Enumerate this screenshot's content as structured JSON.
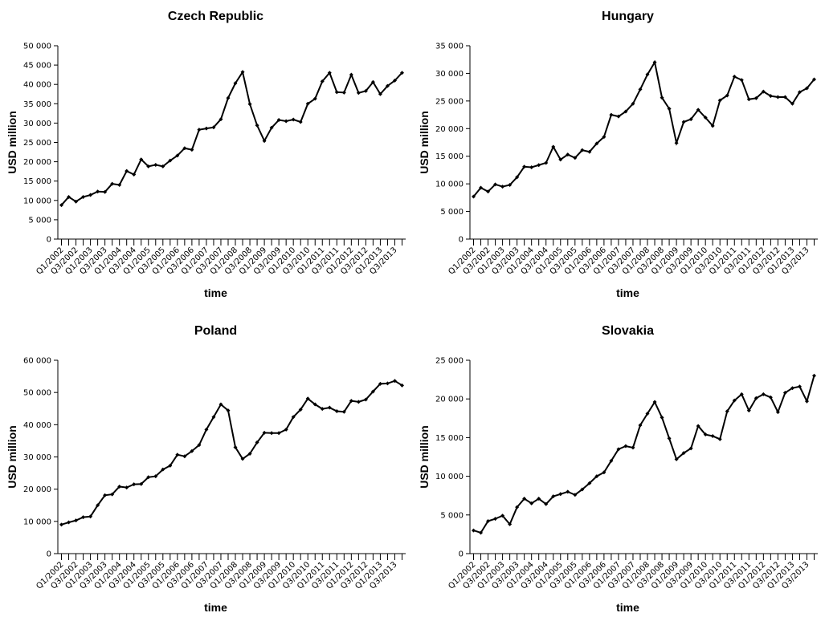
{
  "chart_data": [
    {
      "type": "line",
      "title": "Czech Republic",
      "xlabel": "time",
      "ylabel": "USD million",
      "color": "#000000",
      "categories": [
        "Q1/2002",
        null,
        "Q3/2002",
        null,
        "Q1/2003",
        null,
        "Q3/2003",
        null,
        "Q1/2004",
        null,
        "Q3/2004",
        null,
        "Q1/2005",
        null,
        "Q3/2005",
        null,
        "Q1/2006",
        null,
        "Q3/2006",
        null,
        "Q1/2007",
        null,
        "Q3/2007",
        null,
        "Q1/2008",
        null,
        "Q3/2008",
        null,
        "Q1/2009",
        null,
        "Q3/2009",
        null,
        "Q1/2010",
        null,
        "Q3/2010",
        null,
        "Q1/2011",
        null,
        "Q3/2011",
        null,
        "Q1/2012",
        null,
        "Q3/2012",
        null,
        "Q1/2013",
        null,
        "Q3/2013",
        null
      ],
      "values": [
        8800,
        10900,
        9700,
        10900,
        11400,
        12300,
        12200,
        14300,
        14000,
        17600,
        16700,
        20600,
        18800,
        19200,
        18800,
        20300,
        21600,
        23500,
        23100,
        28300,
        28600,
        28900,
        31000,
        36500,
        40300,
        43200,
        34900,
        29400,
        25400,
        28800,
        30800,
        30500,
        30900,
        30300,
        35000,
        36300,
        40800,
        43000,
        38000,
        37900,
        42500,
        37800,
        38300,
        40600,
        37500,
        39600,
        41000,
        43000
      ],
      "ylim": [
        0,
        50000
      ],
      "yticks": [
        0,
        {
          "value": 5000,
          "label": "5 000"
        },
        {
          "value": 10000,
          "label": "10 000"
        },
        {
          "value": 15000,
          "label": "15 000"
        },
        {
          "value": 20000,
          "label": "20 000"
        },
        {
          "value": 25000,
          "label": "25 000"
        },
        {
          "value": 30000,
          "label": "30 000"
        },
        {
          "value": 35000,
          "label": "35 000"
        },
        {
          "value": 40000,
          "label": "40 000"
        },
        {
          "value": 45000,
          "label": "45 000"
        },
        {
          "value": 50000,
          "label": "50 000"
        }
      ]
    },
    {
      "type": "line",
      "title": "Hungary",
      "xlabel": "time",
      "ylabel": "USD million",
      "color": "#000000",
      "categories": [
        "Q1/2002",
        null,
        "Q3/2002",
        null,
        "Q1/2003",
        null,
        "Q3/2003",
        null,
        "Q1/2004",
        null,
        "Q3/2004",
        null,
        "Q1/2005",
        null,
        "Q3/2005",
        null,
        "Q1/2006",
        null,
        "Q3/2006",
        null,
        "Q1/2007",
        null,
        "Q3/2007",
        null,
        "Q1/2008",
        null,
        "Q3/2008",
        null,
        "Q1/2009",
        null,
        "Q3/2009",
        null,
        "Q1/2010",
        null,
        "Q3/2010",
        null,
        "Q1/2011",
        null,
        "Q3/2011",
        null,
        "Q1/2012",
        null,
        "Q3/2012",
        null,
        "Q1/2013",
        null,
        "Q3/2013",
        null
      ],
      "values": [
        7700,
        9300,
        8600,
        9900,
        9500,
        9800,
        11200,
        13100,
        13000,
        13400,
        13800,
        16700,
        14400,
        15300,
        14700,
        16100,
        15800,
        17300,
        18500,
        22500,
        22200,
        23100,
        24500,
        27100,
        29800,
        32000,
        25600,
        23600,
        17400,
        21200,
        21700,
        23400,
        22000,
        20500,
        25100,
        26000,
        29400,
        28800,
        25300,
        25500,
        26700,
        25900,
        25700,
        25700,
        24500,
        26600,
        27300,
        28900
      ],
      "ylim": [
        0,
        35000
      ],
      "yticks": [
        0,
        {
          "value": 5000,
          "label": "5 000"
        },
        {
          "value": 10000,
          "label": "10 000"
        },
        {
          "value": 15000,
          "label": "15 000"
        },
        {
          "value": 20000,
          "label": "20 000"
        },
        {
          "value": 25000,
          "label": "25 000"
        },
        {
          "value": 30000,
          "label": "30 000"
        },
        {
          "value": 35000,
          "label": "35 000"
        }
      ]
    },
    {
      "type": "line",
      "title": "Poland",
      "xlabel": "time",
      "ylabel": "USD million",
      "color": "#000000",
      "categories": [
        "Q1/2002",
        null,
        "Q3/2002",
        null,
        "Q1/2003",
        null,
        "Q3/2003",
        null,
        "Q1/2004",
        null,
        "Q3/2004",
        null,
        "Q1/2005",
        null,
        "Q3/2005",
        null,
        "Q1/2006",
        null,
        "Q3/2006",
        null,
        "Q1/2007",
        null,
        "Q3/2007",
        null,
        "Q1/2008",
        null,
        "Q3/2008",
        null,
        "Q1/2009",
        null,
        "Q3/2009",
        null,
        "Q1/2010",
        null,
        "Q3/2010",
        null,
        "Q1/2011",
        null,
        "Q3/2011",
        null,
        "Q1/2012",
        null,
        "Q3/2012",
        null,
        "Q1/2013",
        null,
        "Q3/2013",
        null
      ],
      "values": [
        9000,
        9700,
        10300,
        11300,
        11500,
        15000,
        18100,
        18400,
        20800,
        20500,
        21500,
        21600,
        23700,
        24000,
        26100,
        27300,
        30700,
        30200,
        31800,
        33700,
        38500,
        42400,
        46300,
        44400,
        33000,
        29400,
        31000,
        34500,
        37500,
        37400,
        37400,
        38500,
        42400,
        44700,
        48100,
        46300,
        44900,
        45300,
        44200,
        44000,
        47400,
        47100,
        47800,
        50300,
        52700,
        52800,
        53600,
        52200
      ],
      "ylim": [
        0,
        60000
      ],
      "yticks": [
        0,
        {
          "value": 10000,
          "label": "10 000"
        },
        {
          "value": 20000,
          "label": "20 000"
        },
        {
          "value": 30000,
          "label": "30 000"
        },
        {
          "value": 40000,
          "label": "40 000"
        },
        {
          "value": 50000,
          "label": "50 000"
        },
        {
          "value": 60000,
          "label": "60 000"
        }
      ]
    },
    {
      "type": "line",
      "title": "Slovakia",
      "xlabel": "time",
      "ylabel": "USD million",
      "color": "#000000",
      "categories": [
        "Q1/2002",
        null,
        "Q3/2002",
        null,
        "Q1/2003",
        null,
        "Q3/2003",
        null,
        "Q1/2004",
        null,
        "Q3/2004",
        null,
        "Q1/2005",
        null,
        "Q3/2005",
        null,
        "Q1/2006",
        null,
        "Q3/2006",
        null,
        "Q1/2007",
        null,
        "Q3/2007",
        null,
        "Q1/2008",
        null,
        "Q3/2008",
        null,
        "Q1/2009",
        null,
        "Q3/2009",
        null,
        "Q1/2010",
        null,
        "Q3/2010",
        null,
        "Q1/2011",
        null,
        "Q3/2011",
        null,
        "Q1/2012",
        null,
        "Q3/2012",
        null,
        "Q1/2013",
        null,
        "Q3/2013",
        null
      ],
      "values": [
        3000,
        2700,
        4200,
        4500,
        4900,
        3800,
        6000,
        7100,
        6500,
        7100,
        6400,
        7400,
        7700,
        8000,
        7600,
        8300,
        9100,
        10000,
        10500,
        12000,
        13500,
        13900,
        13700,
        16600,
        18100,
        19600,
        17600,
        14900,
        12200,
        13000,
        13600,
        16500,
        15400,
        15200,
        14800,
        18400,
        19800,
        20600,
        18500,
        20100,
        20600,
        20200,
        18300,
        20800,
        21400,
        21600,
        19700,
        23000
      ],
      "ylim": [
        0,
        25000
      ],
      "yticks": [
        0,
        {
          "value": 5000,
          "label": "5 000"
        },
        {
          "value": 10000,
          "label": "10 000"
        },
        {
          "value": 15000,
          "label": "15 000"
        },
        {
          "value": 20000,
          "label": "20 000"
        },
        {
          "value": 25000,
          "label": "25 000"
        }
      ]
    }
  ]
}
